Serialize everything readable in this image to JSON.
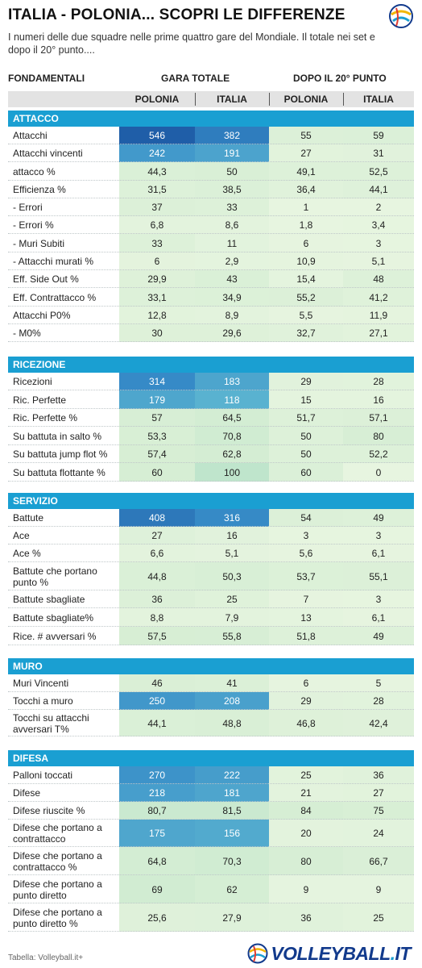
{
  "header": {
    "title": "ITALIA - POLONIA... SCOPRI LE DIFFERENZE",
    "subtitle": "I numeri delle due squadre nelle prime quattro gare del Mondiale. Il totale nei set e dopo il 20° punto....",
    "logo_small_text": "VOLLEYBALL.IT"
  },
  "columns": {
    "group_fondamentali": "FONDAMENTALI",
    "group_totale": "GARA TOTALE",
    "group_dopo20": "DOPO IL 20° PUNTO",
    "sub": [
      "POLONIA",
      "ITALIA",
      "POLONIA",
      "ITALIA"
    ]
  },
  "sections": [
    {
      "name": "ATTACCO",
      "rows": [
        {
          "label": "Attacchi",
          "values": [
            "546",
            "382",
            "55",
            "59"
          ]
        },
        {
          "label": "Attacchi vincenti",
          "values": [
            "242",
            "191",
            "27",
            "31"
          ]
        },
        {
          "label": "attacco %",
          "values": [
            "44,3",
            "50",
            "49,1",
            "52,5"
          ]
        },
        {
          "label": "Efficienza %",
          "values": [
            "31,5",
            "38,5",
            "36,4",
            "44,1"
          ]
        },
        {
          "label": "- Errori",
          "values": [
            "37",
            "33",
            "1",
            "2"
          ]
        },
        {
          "label": "- Errori %",
          "values": [
            "6,8",
            "8,6",
            "1,8",
            "3,4"
          ]
        },
        {
          "label": "- Muri Subiti",
          "values": [
            "33",
            "11",
            "6",
            "3"
          ]
        },
        {
          "label": "- Attacchi murati %",
          "values": [
            "6",
            "2,9",
            "10,9",
            "5,1"
          ]
        },
        {
          "label": "Eff. Side Out %",
          "values": [
            "29,9",
            "43",
            "15,4",
            "48"
          ]
        },
        {
          "label": "Eff. Contrattacco %",
          "values": [
            "33,1",
            "34,9",
            "55,2",
            "41,2"
          ]
        },
        {
          "label": "Attacchi P0%",
          "values": [
            "12,8",
            "8,9",
            "5,5",
            "11,9"
          ]
        },
        {
          "label": "- M0%",
          "values": [
            "30",
            "29,6",
            "32,7",
            "27,1"
          ]
        }
      ]
    },
    {
      "name": "RICEZIONE",
      "rows": [
        {
          "label": "Ricezioni",
          "values": [
            "314",
            "183",
            "29",
            "28"
          ]
        },
        {
          "label": "Ric. Perfette",
          "values": [
            "179",
            "118",
            "15",
            "16"
          ]
        },
        {
          "label": "Ric. Perfette %",
          "values": [
            "57",
            "64,5",
            "51,7",
            "57,1"
          ]
        },
        {
          "label": "Su battuta in salto %",
          "values": [
            "53,3",
            "70,8",
            "50",
            "80"
          ]
        },
        {
          "label": "Su battuta jump flot %",
          "values": [
            "57,4",
            "62,8",
            "50",
            "52,2"
          ]
        },
        {
          "label": "Su battuta flottante %",
          "values": [
            "60",
            "100",
            "60",
            "0"
          ]
        }
      ]
    },
    {
      "name": "SERVIZIO",
      "rows": [
        {
          "label": "Battute",
          "values": [
            "408",
            "316",
            "54",
            "49"
          ]
        },
        {
          "label": "Ace",
          "values": [
            "27",
            "16",
            "3",
            "3"
          ]
        },
        {
          "label": "Ace %",
          "values": [
            "6,6",
            "5,1",
            "5,6",
            "6,1"
          ]
        },
        {
          "label": "Battute che portano punto %",
          "values": [
            "44,8",
            "50,3",
            "53,7",
            "55,1"
          ]
        },
        {
          "label": "Battute sbagliate",
          "values": [
            "36",
            "25",
            "7",
            "3"
          ]
        },
        {
          "label": "Battute sbagliate%",
          "values": [
            "8,8",
            "7,9",
            "13",
            "6,1"
          ]
        },
        {
          "label": "Rice. # avversari %",
          "values": [
            "57,5",
            "55,8",
            "51,8",
            "49"
          ]
        }
      ]
    },
    {
      "name": "MURO",
      "rows": [
        {
          "label": "Muri Vincenti",
          "values": [
            "46",
            "41",
            "6",
            "5"
          ]
        },
        {
          "label": "Tocchi a muro",
          "values": [
            "250",
            "208",
            "29",
            "28"
          ]
        },
        {
          "label": "Tocchi su attacchi avversari T%",
          "values": [
            "44,1",
            "48,8",
            "46,8",
            "42,4"
          ]
        }
      ]
    },
    {
      "name": "DIFESA",
      "rows": [
        {
          "label": "Palloni toccati",
          "values": [
            "270",
            "222",
            "25",
            "36"
          ]
        },
        {
          "label": "Difese",
          "values": [
            "218",
            "181",
            "21",
            "27"
          ]
        },
        {
          "label": "Difese riuscite %",
          "values": [
            "80,7",
            "81,5",
            "84",
            "75"
          ]
        },
        {
          "label": "Difese che portano a contrattacco",
          "values": [
            "175",
            "156",
            "20",
            "24"
          ]
        },
        {
          "label": "Difese che portano a contrattacco %",
          "values": [
            "64,8",
            "70,3",
            "80",
            "66,7"
          ]
        },
        {
          "label": "Difese che portano a punto diretto",
          "values": [
            "69",
            "62",
            "9",
            "9"
          ]
        },
        {
          "label": "Difese che portano a punto diretto %",
          "values": [
            "25,6",
            "27,9",
            "36",
            "25"
          ]
        }
      ]
    }
  ],
  "colors": {
    "section_header": "#1a9fd2",
    "subheader_bg": "#e3e3e3",
    "scale_low": "#eaf6e2",
    "scale_mid": "#a9dcc0",
    "scale_high": "#1f5ea8"
  },
  "footer": {
    "source": "Tabella: Volleyball.it+",
    "logo_main": "VOLLEYBALL",
    "logo_dot": ".",
    "logo_it": "IT"
  }
}
